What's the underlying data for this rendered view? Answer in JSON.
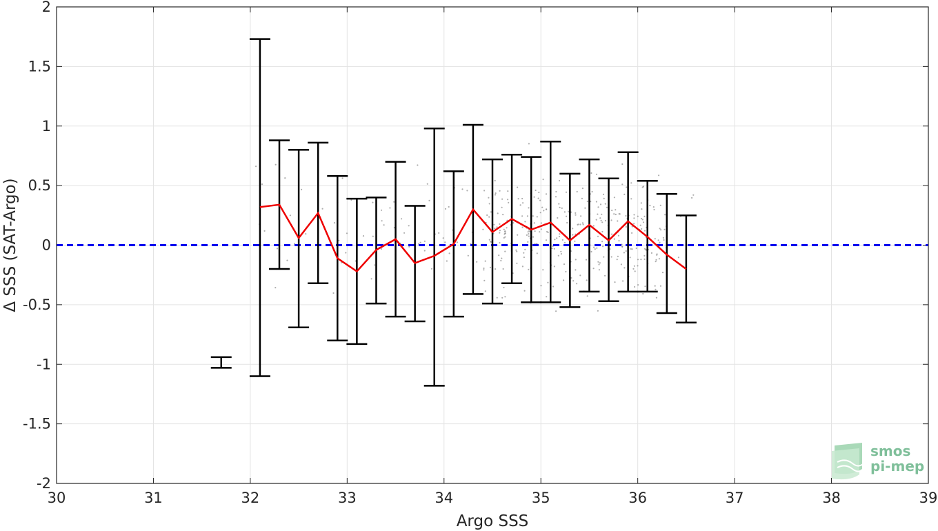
{
  "chart_data": {
    "type": "scatter",
    "xlabel": "Argo SSS",
    "ylabel": "Δ SSS (SAT-Argo)",
    "xlim": [
      30,
      39
    ],
    "ylim": [
      -2,
      2
    ],
    "xticks": [
      30,
      31,
      32,
      33,
      34,
      35,
      36,
      37,
      38,
      39
    ],
    "yticks": [
      -2,
      -1.5,
      -1,
      -0.5,
      0,
      0.5,
      1,
      1.5,
      2
    ],
    "grid": true,
    "reference_line": {
      "y": 0,
      "color": "#0000ee",
      "style": "dashed"
    },
    "mean_line": {
      "color": "#ee0000",
      "x": [
        32.1,
        32.3,
        32.5,
        32.7,
        32.9,
        33.1,
        33.3,
        33.5,
        33.7,
        33.9,
        34.1,
        34.3,
        34.5,
        34.7,
        34.9,
        35.1,
        35.3,
        35.5,
        35.7,
        35.9,
        36.1,
        36.3,
        36.5
      ],
      "y": [
        0.32,
        0.34,
        0.06,
        0.27,
        -0.11,
        -0.22,
        -0.04,
        0.05,
        -0.15,
        -0.09,
        0.01,
        0.3,
        0.11,
        0.22,
        0.13,
        0.19,
        0.04,
        0.17,
        0.04,
        0.2,
        0.07,
        -0.08,
        -0.2
      ]
    },
    "error_bars": {
      "color": "#000000",
      "x": [
        31.7,
        32.1,
        32.3,
        32.5,
        32.7,
        32.9,
        33.1,
        33.3,
        33.5,
        33.7,
        33.9,
        34.1,
        34.3,
        34.5,
        34.7,
        34.9,
        35.1,
        35.3,
        35.5,
        35.7,
        35.9,
        36.1,
        36.3,
        36.5
      ],
      "low": [
        -1.03,
        -1.1,
        -0.2,
        -0.69,
        -0.32,
        -0.8,
        -0.83,
        -0.49,
        -0.6,
        -0.64,
        -1.18,
        -0.6,
        -0.41,
        -0.49,
        -0.32,
        -0.48,
        -0.48,
        -0.52,
        -0.39,
        -0.47,
        -0.39,
        -0.39,
        -0.57,
        -0.65
      ],
      "high": [
        -0.94,
        1.73,
        0.88,
        0.8,
        0.86,
        0.58,
        0.39,
        0.4,
        0.7,
        0.33,
        0.98,
        0.62,
        1.01,
        0.72,
        0.76,
        0.74,
        0.87,
        0.6,
        0.72,
        0.56,
        0.78,
        0.54,
        0.43,
        0.25
      ]
    },
    "scatter_points": {
      "color": "#8c8c8c",
      "count": 450,
      "x_range": [
        32.0,
        36.6
      ],
      "note_distribution": "sparse grey dots; dense cluster around 34.5–36.3"
    }
  },
  "logo": {
    "line1": "smos",
    "line2": "pi-mep",
    "color": "#7fbf9a"
  }
}
